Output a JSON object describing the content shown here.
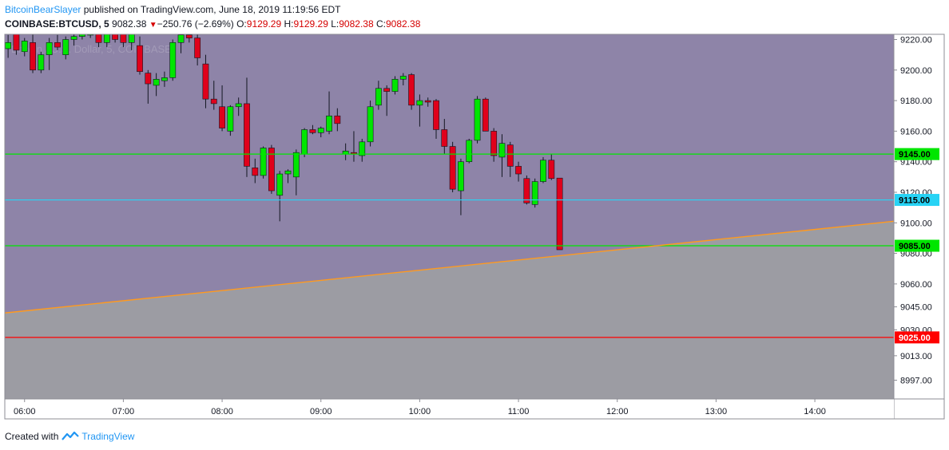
{
  "header": {
    "author": "BitcoinBearSlayer",
    "published_text": "published on TradingView.com, June 18, 2019 11:19:56 EDT",
    "symbol": "COINBASE:BTCUSD, 5",
    "last_price": "9082.38",
    "change": "−250.76 (−2.69%)",
    "o_label": "O:",
    "o_value": "9129.29",
    "h_label": "H:",
    "h_value": "9129.29",
    "l_label": "L:",
    "l_value": "9082.38",
    "c_label": "C:",
    "c_value": "9082.38"
  },
  "watermark": "Bitcoin / U.S. Dollar, 5, COINBASE",
  "footer": {
    "created_with": "Created with",
    "brand": "TradingView"
  },
  "colors": {
    "up": "#00e600",
    "down": "#e0001b",
    "wick": "#131722",
    "upper_zone": "#8e84a8",
    "lower_zone": "#9c9ca3",
    "green_line": "#00e600",
    "cyan_line": "#27d3f5",
    "red_line": "#ff0000",
    "trend_line": "#ff9a1f"
  },
  "chart_data": {
    "type": "candlestick",
    "timeframe_minutes": 5,
    "x_ticks": [
      "06:00",
      "07:00",
      "08:00",
      "09:00",
      "10:00",
      "11:00",
      "12:00",
      "13:00",
      "14:00"
    ],
    "y_ticks": [
      9220.0,
      9200.0,
      9180.0,
      9160.0,
      9140.0,
      9120.0,
      9100.0,
      9080.0,
      9060.0,
      9045.0,
      9030.0,
      9013.0,
      8997.0
    ],
    "x_range": [
      "05:48",
      "14:48"
    ],
    "y_range": [
      8986,
      9224
    ],
    "candles": [
      {
        "t": "05:50",
        "o": 9214,
        "h": 9223,
        "l": 9208,
        "c": 9218
      },
      {
        "t": "05:55",
        "o": 9226,
        "h": 9228,
        "l": 9210,
        "c": 9213
      },
      {
        "t": "06:00",
        "o": 9212,
        "h": 9221,
        "l": 9209,
        "c": 9219
      },
      {
        "t": "06:05",
        "o": 9218,
        "h": 9224,
        "l": 9198,
        "c": 9200
      },
      {
        "t": "06:10",
        "o": 9200,
        "h": 9212,
        "l": 9198,
        "c": 9210
      },
      {
        "t": "06:15",
        "o": 9210,
        "h": 9221,
        "l": 9200,
        "c": 9218
      },
      {
        "t": "06:20",
        "o": 9218,
        "h": 9223,
        "l": 9213,
        "c": 9215
      },
      {
        "t": "06:25",
        "o": 9210,
        "h": 9222,
        "l": 9207,
        "c": 9220
      },
      {
        "t": "06:30",
        "o": 9220,
        "h": 9225,
        "l": 9216,
        "c": 9222
      },
      {
        "t": "06:35",
        "o": 9222,
        "h": 9228,
        "l": 9220,
        "c": 9224
      },
      {
        "t": "06:40",
        "o": 9224,
        "h": 9230,
        "l": 9221,
        "c": 9226
      },
      {
        "t": "06:45",
        "o": 9226,
        "h": 9230,
        "l": 9215,
        "c": 9218
      },
      {
        "t": "06:50",
        "o": 9218,
        "h": 9228,
        "l": 9215,
        "c": 9224
      },
      {
        "t": "06:55",
        "o": 9224,
        "h": 9231,
        "l": 9218,
        "c": 9220
      },
      {
        "t": "07:00",
        "o": 9224,
        "h": 9230,
        "l": 9215,
        "c": 9218
      },
      {
        "t": "07:05",
        "o": 9218,
        "h": 9228,
        "l": 9213,
        "c": 9226
      },
      {
        "t": "07:10",
        "o": 9216,
        "h": 9222,
        "l": 9197,
        "c": 9199
      },
      {
        "t": "07:15",
        "o": 9198,
        "h": 9200,
        "l": 9178,
        "c": 9191
      },
      {
        "t": "07:20",
        "o": 9190,
        "h": 9198,
        "l": 9183,
        "c": 9194
      },
      {
        "t": "07:25",
        "o": 9193,
        "h": 9199,
        "l": 9189,
        "c": 9195
      },
      {
        "t": "07:30",
        "o": 9195,
        "h": 9220,
        "l": 9193,
        "c": 9218
      },
      {
        "t": "07:35",
        "o": 9218,
        "h": 9224,
        "l": 9211,
        "c": 9223
      },
      {
        "t": "07:40",
        "o": 9223,
        "h": 9228,
        "l": 9218,
        "c": 9221
      },
      {
        "t": "07:45",
        "o": 9221,
        "h": 9226,
        "l": 9203,
        "c": 9208
      },
      {
        "t": "07:50",
        "o": 9204,
        "h": 9210,
        "l": 9175,
        "c": 9181
      },
      {
        "t": "07:55",
        "o": 9181,
        "h": 9193,
        "l": 9174,
        "c": 9178
      },
      {
        "t": "08:00",
        "o": 9176,
        "h": 9190,
        "l": 9160,
        "c": 9162
      },
      {
        "t": "08:05",
        "o": 9160,
        "h": 9177,
        "l": 9157,
        "c": 9176
      },
      {
        "t": "08:10",
        "o": 9176,
        "h": 9182,
        "l": 9170,
        "c": 9178
      },
      {
        "t": "08:15",
        "o": 9178,
        "h": 9195,
        "l": 9130,
        "c": 9137
      },
      {
        "t": "08:20",
        "o": 9136,
        "h": 9142,
        "l": 9126,
        "c": 9131
      },
      {
        "t": "08:25",
        "o": 9131,
        "h": 9150,
        "l": 9129,
        "c": 9149
      },
      {
        "t": "08:30",
        "o": 9149,
        "h": 9151,
        "l": 9119,
        "c": 9121
      },
      {
        "t": "08:35",
        "o": 9118,
        "h": 9134,
        "l": 9101,
        "c": 9132
      },
      {
        "t": "08:40",
        "o": 9132,
        "h": 9135,
        "l": 9126,
        "c": 9134
      },
      {
        "t": "08:45",
        "o": 9130,
        "h": 9148,
        "l": 9118,
        "c": 9146
      },
      {
        "t": "08:50",
        "o": 9145,
        "h": 9162,
        "l": 9143,
        "c": 9161
      },
      {
        "t": "08:55",
        "o": 9161,
        "h": 9164,
        "l": 9158,
        "c": 9159
      },
      {
        "t": "09:00",
        "o": 9159,
        "h": 9163,
        "l": 9156,
        "c": 9162
      },
      {
        "t": "09:05",
        "o": 9160,
        "h": 9186,
        "l": 9158,
        "c": 9170
      },
      {
        "t": "09:10",
        "o": 9170,
        "h": 9175,
        "l": 9160,
        "c": 9165
      },
      {
        "t": "09:15",
        "o": 9145,
        "h": 9152,
        "l": 9141,
        "c": 9147
      },
      {
        "t": "09:20",
        "o": 9146,
        "h": 9160,
        "l": 9140,
        "c": 9145
      },
      {
        "t": "09:25",
        "o": 9144,
        "h": 9155,
        "l": 9140,
        "c": 9153
      },
      {
        "t": "09:30",
        "o": 9153,
        "h": 9180,
        "l": 9150,
        "c": 9176
      },
      {
        "t": "09:35",
        "o": 9177,
        "h": 9193,
        "l": 9174,
        "c": 9188
      },
      {
        "t": "09:40",
        "o": 9188,
        "h": 9190,
        "l": 9170,
        "c": 9186
      },
      {
        "t": "09:45",
        "o": 9186,
        "h": 9196,
        "l": 9184,
        "c": 9194
      },
      {
        "t": "09:50",
        "o": 9194,
        "h": 9198,
        "l": 9190,
        "c": 9196
      },
      {
        "t": "09:55",
        "o": 9197,
        "h": 9198,
        "l": 9174,
        "c": 9177
      },
      {
        "t": "10:00",
        "o": 9177,
        "h": 9184,
        "l": 9163,
        "c": 9180
      },
      {
        "t": "10:05",
        "o": 9180,
        "h": 9182,
        "l": 9176,
        "c": 9179
      },
      {
        "t": "10:10",
        "o": 9180,
        "h": 9181,
        "l": 9155,
        "c": 9161
      },
      {
        "t": "10:15",
        "o": 9161,
        "h": 9168,
        "l": 9145,
        "c": 9150
      },
      {
        "t": "10:20",
        "o": 9150,
        "h": 9153,
        "l": 9120,
        "c": 9122
      },
      {
        "t": "10:25",
        "o": 9121,
        "h": 9142,
        "l": 9105,
        "c": 9140
      },
      {
        "t": "10:30",
        "o": 9140,
        "h": 9155,
        "l": 9139,
        "c": 9154
      },
      {
        "t": "10:35",
        "o": 9154,
        "h": 9183,
        "l": 9152,
        "c": 9181
      },
      {
        "t": "10:40",
        "o": 9181,
        "h": 9182,
        "l": 9160,
        "c": 9160
      },
      {
        "t": "10:45",
        "o": 9160,
        "h": 9162,
        "l": 9140,
        "c": 9144
      },
      {
        "t": "10:50",
        "o": 9143,
        "h": 9158,
        "l": 9130,
        "c": 9152
      },
      {
        "t": "10:55",
        "o": 9151,
        "h": 9153,
        "l": 9130,
        "c": 9137
      },
      {
        "t": "11:00",
        "o": 9137,
        "h": 9140,
        "l": 9127,
        "c": 9132
      },
      {
        "t": "11:05",
        "o": 9129,
        "h": 9131,
        "l": 9112,
        "c": 9113
      },
      {
        "t": "11:10",
        "o": 9112,
        "h": 9129,
        "l": 9110,
        "c": 9127
      },
      {
        "t": "11:15",
        "o": 9127,
        "h": 9143,
        "l": 9126,
        "c": 9141
      },
      {
        "t": "11:20",
        "o": 9141,
        "h": 9145,
        "l": 9128,
        "c": 9129
      },
      {
        "t": "11:25",
        "o": 9129.29,
        "h": 9129.29,
        "l": 9082.38,
        "c": 9082.38
      }
    ],
    "horizontal_lines": [
      {
        "price": 9145.0,
        "label": "9145.00",
        "color": "#00e600",
        "text_color": "#000000"
      },
      {
        "price": 9115.0,
        "label": "9115.00",
        "color": "#27d3f5",
        "text_color": "#000000"
      },
      {
        "price": 9085.0,
        "label": "9085.00",
        "color": "#00e600",
        "text_color": "#000000"
      },
      {
        "price": 9025.0,
        "label": "9025.00",
        "color": "#ff0000",
        "text_color": "#ffffff"
      }
    ],
    "trend_line": {
      "start": {
        "t": "05:48",
        "price": 9041
      },
      "end": {
        "t": "14:48",
        "price": 9101
      }
    }
  }
}
